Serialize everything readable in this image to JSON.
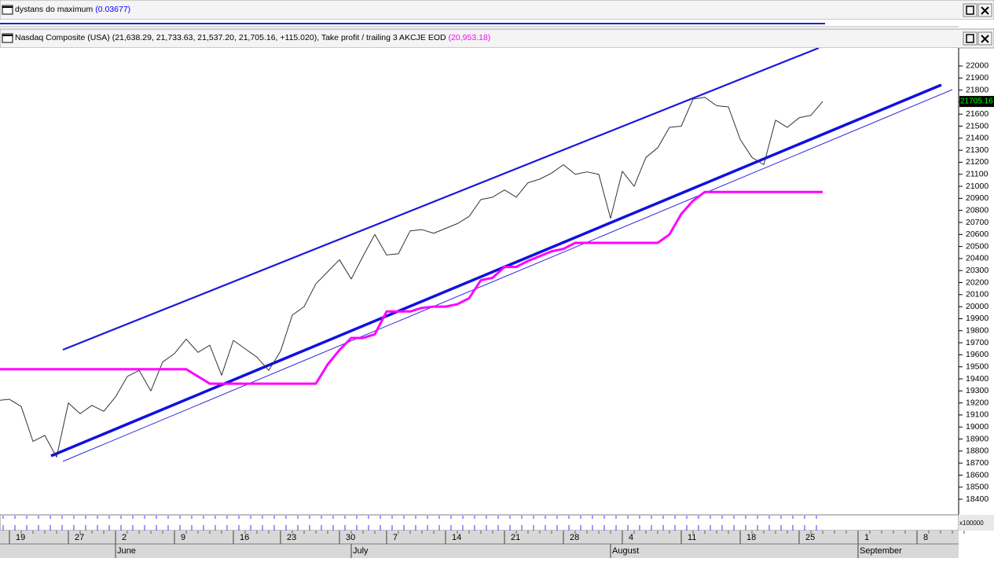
{
  "window": {
    "panes": [
      {
        "title": "dystans do maximum",
        "value": "(0.03677)"
      },
      {
        "title": "Nasdaq Composite (USA) (21,638.29, 21,733.63, 21,537.20, 21,705.16, +115.020), Take profit / trailing 3 AKCJE EOD",
        "value": "(20,953.18)"
      }
    ]
  },
  "chart_data": {
    "type": "line",
    "categories": [
      null,
      "19",
      null,
      null,
      null,
      null,
      "27",
      null,
      null,
      null,
      "2",
      null,
      null,
      null,
      null,
      "9",
      null,
      null,
      null,
      null,
      "16",
      null,
      null,
      null,
      "23",
      null,
      null,
      null,
      null,
      "30",
      null,
      null,
      null,
      "7",
      null,
      null,
      null,
      null,
      "14",
      null,
      null,
      null,
      null,
      "21",
      null,
      null,
      null,
      null,
      "28",
      null,
      null,
      null,
      null,
      "4",
      null,
      null,
      null,
      null,
      "11",
      null,
      null,
      null,
      null,
      "18",
      null,
      null,
      null,
      null,
      "25",
      null,
      null,
      null,
      null,
      "1",
      null,
      null,
      null,
      null,
      "8",
      null,
      null,
      null,
      null
    ],
    "months": [
      "June",
      "July",
      "August",
      "September"
    ],
    "volume_label": "x100000",
    "series": [
      {
        "color": "#333333",
        "values": [
          19220,
          19230,
          19170,
          18880,
          18930,
          18750,
          19200,
          19110,
          19180,
          19130,
          19250,
          19420,
          19470,
          19300,
          19540,
          19610,
          19730,
          19620,
          19680,
          19430,
          19720,
          19650,
          19580,
          19470,
          19630,
          19930,
          20000,
          20190,
          20290,
          20390,
          20230,
          20420,
          20600,
          20430,
          20440,
          20630,
          20640,
          20610,
          20650,
          20690,
          20750,
          20890,
          20910,
          20970,
          20910,
          21030,
          21060,
          21110,
          21180,
          21100,
          21120,
          21100,
          20735,
          21125,
          21000,
          21240,
          21320,
          21490,
          21500,
          21725,
          21740,
          21670,
          21660,
          21390,
          21240,
          21180,
          21550,
          21490,
          21570,
          21590.14,
          21705.16,
          null,
          null,
          null,
          null,
          null,
          null,
          null,
          null,
          null,
          null,
          null,
          null
        ]
      },
      {
        "color": "#ff00ff",
        "values": [
          19480,
          19480,
          19480,
          19480,
          19480,
          19480,
          19480,
          19480,
          19480,
          19480,
          19480,
          19480,
          19480,
          19480,
          19480,
          19480,
          19480,
          19420,
          19360,
          19360,
          19360,
          19360,
          19360,
          19360,
          19360,
          19360,
          19360,
          19360,
          19520,
          19640,
          19740,
          19740,
          19770,
          19960,
          19960,
          19960,
          19990,
          20000,
          20000,
          20020,
          20070,
          20220,
          20240,
          20330,
          20330,
          20380,
          20420,
          20460,
          20480,
          20530,
          20530,
          20530,
          20530,
          20530,
          20530,
          20530,
          20530,
          20600,
          20770,
          20880,
          20953.18,
          20953.18,
          20953.18,
          20953.18,
          20953.18,
          20953.18,
          20953.18,
          20953.18,
          20953.18,
          20953.18,
          20953.18,
          null,
          null,
          null,
          null,
          null,
          null,
          null,
          null,
          null,
          null,
          null,
          null
        ]
      }
    ],
    "ylim": [
      18270,
      22150
    ],
    "yticks": [
      18400,
      18500,
      18600,
      18700,
      18800,
      18900,
      19000,
      19100,
      19200,
      19300,
      19400,
      19500,
      19600,
      19700,
      19800,
      19900,
      20000,
      20100,
      20200,
      20300,
      20400,
      20500,
      20600,
      20700,
      20800,
      20900,
      21000,
      21100,
      21200,
      21300,
      21400,
      21500,
      21600,
      21700,
      21800,
      21900,
      22000
    ]
  }
}
